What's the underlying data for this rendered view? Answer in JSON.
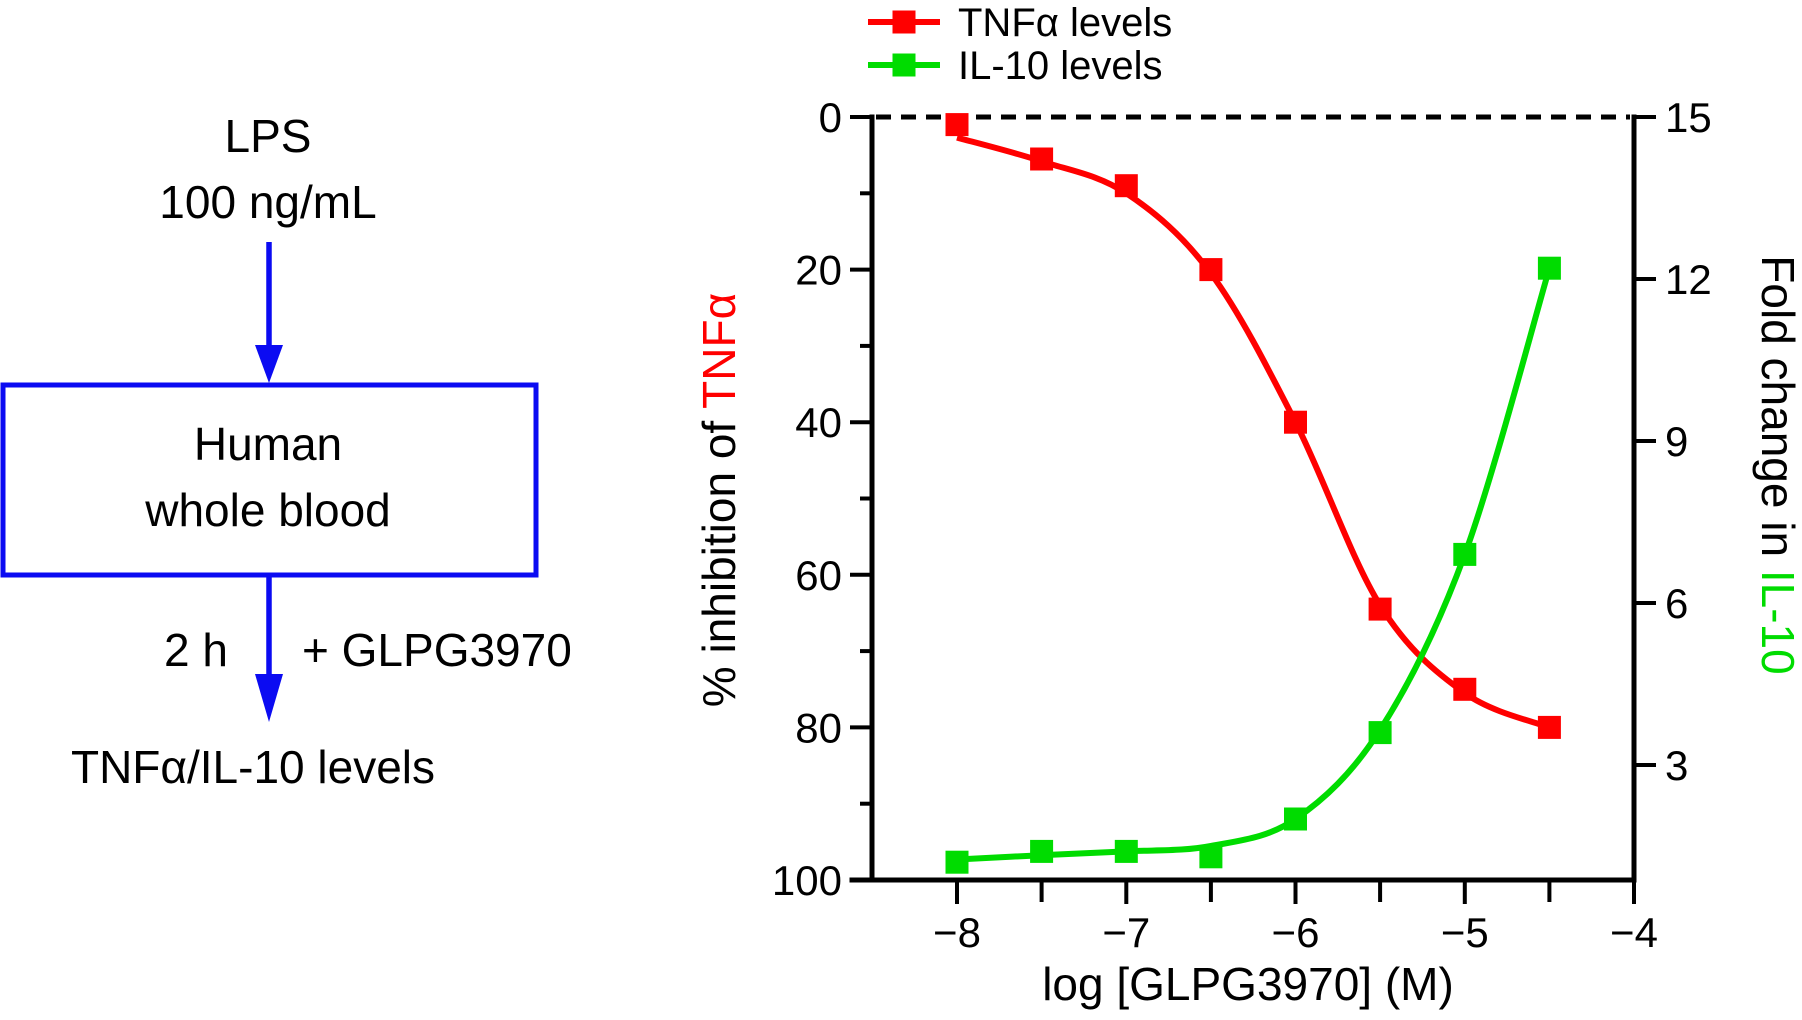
{
  "diagram": {
    "accent_color": "#0B0BF2",
    "stimulus": {
      "line1": "LPS",
      "line2": "100 ng/mL"
    },
    "box": {
      "line1": "Human",
      "line2": "whole blood"
    },
    "incubation_label": "2 h",
    "treatment_label": "+ GLPG3970",
    "readout_label": "TNFα/IL-10 levels"
  },
  "chart_data": {
    "type": "line",
    "title": "",
    "xlabel": "log [GLPG3970] (M)",
    "x_ticks": [
      -8,
      -7,
      -6,
      -5,
      -4
    ],
    "x_tick_labels": [
      "−8",
      "−7",
      "−6",
      "−5",
      "−4"
    ],
    "x_minor_ticks": [
      -7.5,
      -6.5,
      -5.5,
      -4.5
    ],
    "x_range": [
      -8.5,
      -4
    ],
    "grid": false,
    "legend_position": "top",
    "left_axis": {
      "title_prefix": "% inhibition of ",
      "title_highlight": "TNFα",
      "highlight_color": "#FF0000",
      "ticks": [
        0,
        20,
        40,
        60,
        80,
        100
      ],
      "minor_ticks": [
        10,
        30,
        50,
        70,
        90
      ],
      "range": [
        0,
        100
      ],
      "orientation": "0 at top, 100 at bottom"
    },
    "right_axis": {
      "title_prefix": "Fold change in ",
      "title_highlight": "IL-10",
      "highlight_color": "#00DC00",
      "ticks": [
        15,
        12,
        9,
        6,
        3
      ],
      "top_value": 15,
      "units_per_tick": 3
    },
    "baseline": {
      "value": 0,
      "style": "dashed",
      "color": "#000000"
    },
    "x": [
      -8,
      -7.5,
      -7,
      -6.5,
      -6,
      -5.5,
      -5,
      -4.5
    ],
    "series": [
      {
        "name": "TNFα levels",
        "color": "#FF0000",
        "axis": "left",
        "marker": "square",
        "values": [
          1,
          5.5,
          9,
          20,
          40,
          64.5,
          75,
          80
        ],
        "fit_curve": [
          2.7,
          5.8,
          10,
          20.5,
          40,
          64,
          75.5,
          80
        ]
      },
      {
        "name": "IL-10 levels",
        "color": "#00DC00",
        "axis": "right",
        "marker": "square",
        "values": [
          1.2,
          1.4,
          1.4,
          1.3,
          2.0,
          3.6,
          6.9,
          12.2
        ],
        "fit_curve": [
          1.25,
          1.33,
          1.4,
          1.5,
          2.0,
          3.65,
          6.9,
          12.2
        ]
      }
    ]
  }
}
